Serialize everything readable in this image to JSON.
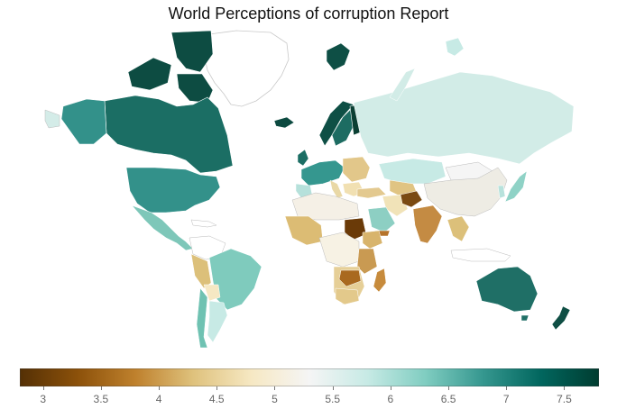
{
  "title": "World Perceptions of corruption Report",
  "colorbar": {
    "min": 2.8,
    "max": 7.8,
    "ticks": [
      "3",
      "3.5",
      "4",
      "4.5",
      "5",
      "5.5",
      "6",
      "6.5",
      "7",
      "7.5"
    ],
    "tick_values": [
      3,
      3.5,
      4,
      4.5,
      5,
      5.5,
      6,
      6.5,
      7,
      7.5
    ],
    "colorscale": [
      "#543005",
      "#8c510a",
      "#bf812d",
      "#dfc27d",
      "#f6e8c3",
      "#f5f5f5",
      "#c7eae5",
      "#80cdc1",
      "#35978f",
      "#01665e",
      "#003c30"
    ]
  },
  "regions": [
    {
      "name": "Greenland",
      "color": "#ffffff"
    },
    {
      "name": "Canada",
      "color": "#1b6e64"
    },
    {
      "name": "United States",
      "color": "#33918a"
    },
    {
      "name": "Mexico",
      "color": "#7ec7b9"
    },
    {
      "name": "Brazil",
      "color": "#7fcbbd"
    },
    {
      "name": "Australia",
      "color": "#1f6f66"
    },
    {
      "name": "New Zealand",
      "color": "#0f4f45"
    },
    {
      "name": "Russia",
      "color": "#d2ece7"
    },
    {
      "name": "China",
      "color": "#eeece4"
    },
    {
      "name": "India",
      "color": "#c48b43"
    },
    {
      "name": "Afghanistan",
      "color": "#7a4a12"
    },
    {
      "name": "Sudan",
      "color": "#6a3a08"
    },
    {
      "name": "Norway",
      "color": "#0e4f45"
    },
    {
      "name": "Sweden",
      "color": "#1d6c62"
    },
    {
      "name": "Finland",
      "color": "#0b3f33"
    },
    {
      "name": "Iceland",
      "color": "#0c4a40"
    },
    {
      "name": "Madagascar",
      "color": "#c78b3c"
    },
    {
      "name": "Saudi Arabia",
      "color": "#8dcfc3"
    }
  ]
}
